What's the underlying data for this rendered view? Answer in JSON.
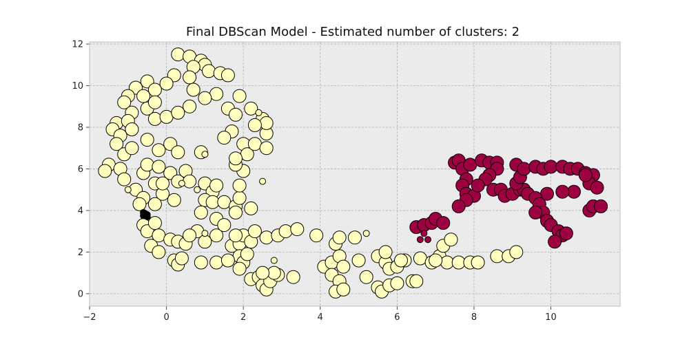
{
  "chart_data": {
    "type": "scatter",
    "title": "Final DBScan Model - Estimated number of clusters: 2",
    "xlabel": "",
    "ylabel": "",
    "xlim": [
      -2.0,
      11.8
    ],
    "ylim": [
      -0.6,
      12.1
    ],
    "xticks": [
      -2,
      0,
      2,
      4,
      6,
      8,
      10
    ],
    "yticks": [
      0,
      2,
      4,
      6,
      8,
      10,
      12
    ],
    "grid": true,
    "colors": {
      "background": "#ebebeb",
      "cluster_0": "#ffffbf",
      "cluster_1": "#9e0142",
      "noise": "#000000",
      "edge": "#000000"
    },
    "series": [
      {
        "cluster": 0,
        "size": "large",
        "points": [
          [
            0.3,
            11.5
          ],
          [
            0.6,
            11.4
          ],
          [
            0.9,
            11.2
          ],
          [
            1.0,
            11.0
          ],
          [
            0.7,
            10.9
          ],
          [
            1.1,
            10.7
          ],
          [
            0.2,
            10.5
          ],
          [
            0.6,
            10.4
          ],
          [
            1.4,
            10.6
          ],
          [
            1.6,
            10.5
          ],
          [
            -0.5,
            10.2
          ],
          [
            -0.3,
            9.8
          ],
          [
            0.0,
            10.1
          ],
          [
            -0.8,
            9.9
          ],
          [
            -1.0,
            9.5
          ],
          [
            -0.6,
            9.5
          ],
          [
            0.7,
            9.8
          ],
          [
            1.3,
            9.6
          ],
          [
            1.0,
            9.4
          ],
          [
            1.9,
            9.5
          ],
          [
            -1.1,
            9.2
          ],
          [
            -0.9,
            8.7
          ],
          [
            -0.5,
            8.9
          ],
          [
            -0.3,
            9.2
          ],
          [
            -1.3,
            8.2
          ],
          [
            -1.4,
            7.9
          ],
          [
            -1.0,
            8.3
          ],
          [
            -1.2,
            7.6
          ],
          [
            -0.9,
            7.9
          ],
          [
            -0.3,
            8.4
          ],
          [
            0.0,
            8.5
          ],
          [
            0.3,
            8.7
          ],
          [
            0.6,
            9.0
          ],
          [
            1.6,
            8.9
          ],
          [
            1.8,
            8.6
          ],
          [
            2.2,
            8.9
          ],
          [
            2.5,
            8.4
          ],
          [
            1.7,
            7.8
          ],
          [
            2.6,
            7.7
          ],
          [
            2.0,
            7.2
          ],
          [
            -1.3,
            7.2
          ],
          [
            -1.1,
            6.7
          ],
          [
            -0.9,
            7.0
          ],
          [
            -0.5,
            7.4
          ],
          [
            -0.2,
            6.9
          ],
          [
            0.1,
            7.2
          ],
          [
            0.3,
            6.8
          ],
          [
            -1.5,
            6.2
          ],
          [
            -1.6,
            5.9
          ],
          [
            -1.2,
            6.0
          ],
          [
            -1.1,
            5.5
          ],
          [
            -0.6,
            5.8
          ],
          [
            -0.5,
            6.2
          ],
          [
            -0.2,
            6.1
          ],
          [
            0.1,
            5.8
          ],
          [
            0.3,
            5.4
          ],
          [
            -0.8,
            5.0
          ],
          [
            -0.3,
            5.3
          ],
          [
            -0.6,
            4.6
          ],
          [
            -0.1,
            4.8
          ],
          [
            0.2,
            4.5
          ],
          [
            -0.7,
            4.3
          ],
          [
            -0.3,
            4.3
          ],
          [
            -0.6,
            3.3
          ],
          [
            -0.5,
            3.0
          ],
          [
            -0.3,
            3.4
          ],
          [
            -0.2,
            2.8
          ],
          [
            -0.4,
            2.3
          ],
          [
            -0.2,
            2.0
          ],
          [
            0.1,
            2.6
          ],
          [
            0.3,
            2.5
          ],
          [
            0.5,
            2.4
          ],
          [
            0.2,
            1.6
          ],
          [
            0.3,
            1.4
          ],
          [
            0.4,
            1.7
          ],
          [
            0.5,
            5.9
          ],
          [
            0.6,
            5.4
          ],
          [
            1.0,
            5.3
          ],
          [
            1.2,
            4.9
          ],
          [
            1.3,
            5.2
          ],
          [
            1.0,
            4.5
          ],
          [
            1.2,
            4.4
          ],
          [
            1.5,
            4.4
          ],
          [
            1.8,
            4.2
          ],
          [
            1.9,
            4.6
          ],
          [
            2.2,
            4.1
          ],
          [
            0.9,
            3.9
          ],
          [
            1.3,
            3.6
          ],
          [
            1.8,
            3.9
          ],
          [
            0.8,
            3.0
          ],
          [
            1.0,
            2.5
          ],
          [
            1.3,
            2.8
          ],
          [
            1.7,
            2.3
          ],
          [
            1.9,
            2.4
          ],
          [
            2.0,
            2.8
          ],
          [
            2.2,
            2.5
          ],
          [
            2.3,
            3.0
          ],
          [
            1.8,
            2.8
          ],
          [
            1.9,
            5.2
          ],
          [
            2.0,
            5.9
          ],
          [
            1.8,
            6.2
          ],
          [
            2.1,
            6.7
          ],
          [
            1.8,
            6.5
          ],
          [
            2.3,
            7.2
          ],
          [
            2.6,
            7.0
          ],
          [
            1.9,
            1.8
          ],
          [
            2.0,
            1.5
          ],
          [
            0.9,
            1.5
          ],
          [
            1.3,
            1.5
          ],
          [
            1.6,
            1.6
          ],
          [
            1.9,
            1.2
          ],
          [
            2.1,
            1.9
          ],
          [
            2.2,
            0.7
          ],
          [
            2.4,
            0.8
          ],
          [
            2.5,
            0.4
          ],
          [
            2.6,
            0.2
          ],
          [
            2.7,
            0.6
          ],
          [
            2.9,
            0.9
          ],
          [
            3.3,
            0.8
          ],
          [
            2.6,
            2.7
          ],
          [
            2.9,
            2.8
          ],
          [
            3.1,
            3.0
          ],
          [
            3.4,
            3.1
          ],
          [
            3.9,
            2.8
          ],
          [
            4.1,
            1.3
          ],
          [
            4.3,
            1.5
          ],
          [
            4.5,
            1.8
          ],
          [
            4.6,
            1.3
          ],
          [
            4.3,
            0.9
          ],
          [
            4.5,
            0.6
          ],
          [
            4.4,
            0.1
          ],
          [
            4.6,
            0.2
          ],
          [
            4.4,
            2.4
          ],
          [
            4.5,
            2.7
          ],
          [
            4.9,
            2.7
          ],
          [
            5.0,
            1.6
          ],
          [
            5.2,
            0.8
          ],
          [
            5.5,
            0.3
          ],
          [
            5.6,
            0.1
          ],
          [
            5.8,
            0.4
          ],
          [
            5.5,
            1.8
          ],
          [
            5.7,
            1.5
          ],
          [
            5.8,
            1.2
          ],
          [
            6.0,
            1.3
          ],
          [
            6.0,
            0.5
          ],
          [
            6.2,
            1.6
          ],
          [
            6.4,
            0.6
          ],
          [
            6.6,
            1.7
          ],
          [
            6.9,
            1.5
          ],
          [
            7.1,
            1.8
          ],
          [
            7.3,
            1.5
          ],
          [
            7.6,
            1.5
          ],
          [
            7.9,
            1.5
          ],
          [
            8.1,
            1.5
          ],
          [
            8.6,
            1.8
          ],
          [
            8.9,
            1.8
          ],
          [
            9.1,
            2.0
          ],
          [
            5.7,
            2.0
          ],
          [
            6.1,
            1.6
          ],
          [
            6.5,
            0.6
          ],
          [
            7.0,
            1.6
          ],
          [
            7.2,
            2.3
          ],
          [
            7.4,
            2.6
          ],
          [
            2.6,
            8.2
          ],
          [
            2.3,
            8.1
          ],
          [
            1.5,
            7.5
          ],
          [
            0.9,
            6.8
          ],
          [
            -0.1,
            5.3
          ],
          [
            0.6,
            2.8
          ],
          [
            1.5,
            3.3
          ],
          [
            2.8,
            1.0
          ],
          [
            2.5,
            1.0
          ]
        ]
      },
      {
        "cluster": 0,
        "size": "small",
        "points": [
          [
            0.8,
            5.0
          ],
          [
            -1.0,
            5.0
          ],
          [
            1.0,
            6.7
          ],
          [
            1.0,
            2.9
          ],
          [
            2.4,
            8.7
          ],
          [
            2.5,
            5.4
          ],
          [
            2.8,
            1.6
          ],
          [
            5.2,
            2.9
          ],
          [
            0.4,
            5.3
          ]
        ]
      },
      {
        "cluster": 1,
        "size": "large",
        "points": [
          [
            7.5,
            6.3
          ],
          [
            7.6,
            6.4
          ],
          [
            7.7,
            6.0
          ],
          [
            7.8,
            5.5
          ],
          [
            7.7,
            5.2
          ],
          [
            7.8,
            4.8
          ],
          [
            8.0,
            4.7
          ],
          [
            7.8,
            4.5
          ],
          [
            7.6,
            4.2
          ],
          [
            7.9,
            6.2
          ],
          [
            8.2,
            6.4
          ],
          [
            8.4,
            6.3
          ],
          [
            8.6,
            6.3
          ],
          [
            8.6,
            6.0
          ],
          [
            8.4,
            5.7
          ],
          [
            8.3,
            5.5
          ],
          [
            8.5,
            5.0
          ],
          [
            8.7,
            5.0
          ],
          [
            8.8,
            4.7
          ],
          [
            9.0,
            4.8
          ],
          [
            9.2,
            5.0
          ],
          [
            9.3,
            5.0
          ],
          [
            9.4,
            4.8
          ],
          [
            9.1,
            5.3
          ],
          [
            9.2,
            5.6
          ],
          [
            9.1,
            6.2
          ],
          [
            9.3,
            6.0
          ],
          [
            9.6,
            6.1
          ],
          [
            9.8,
            6.0
          ],
          [
            10.0,
            6.1
          ],
          [
            10.3,
            6.1
          ],
          [
            10.5,
            6.0
          ],
          [
            10.7,
            6.0
          ],
          [
            10.9,
            5.8
          ],
          [
            11.1,
            5.7
          ],
          [
            11.0,
            5.3
          ],
          [
            11.2,
            5.1
          ],
          [
            10.6,
            4.9
          ],
          [
            10.3,
            4.9
          ],
          [
            9.9,
            4.8
          ],
          [
            9.6,
            4.6
          ],
          [
            9.7,
            4.3
          ],
          [
            9.8,
            3.9
          ],
          [
            9.6,
            3.9
          ],
          [
            9.9,
            3.5
          ],
          [
            10.0,
            3.3
          ],
          [
            10.2,
            3.0
          ],
          [
            10.3,
            2.8
          ],
          [
            10.4,
            2.9
          ],
          [
            10.1,
            2.5
          ],
          [
            11.0,
            4.0
          ],
          [
            11.1,
            4.2
          ],
          [
            11.3,
            4.2
          ],
          [
            6.5,
            3.2
          ],
          [
            6.7,
            3.3
          ],
          [
            6.9,
            3.4
          ],
          [
            7.0,
            3.6
          ],
          [
            7.2,
            3.4
          ],
          [
            10.9,
            5.7
          ],
          [
            8.1,
            5.2
          ]
        ]
      },
      {
        "cluster": 1,
        "size": "small",
        "points": [
          [
            6.6,
            2.6
          ],
          [
            6.8,
            2.6
          ],
          [
            6.7,
            2.9
          ]
        ]
      },
      {
        "cluster": -1,
        "size": "small",
        "points": [
          [
            -0.6,
            3.9
          ],
          [
            -0.5,
            3.8
          ],
          [
            -0.6,
            3.75
          ],
          [
            -0.5,
            3.7
          ],
          [
            -0.55,
            3.85
          ]
        ]
      }
    ]
  }
}
